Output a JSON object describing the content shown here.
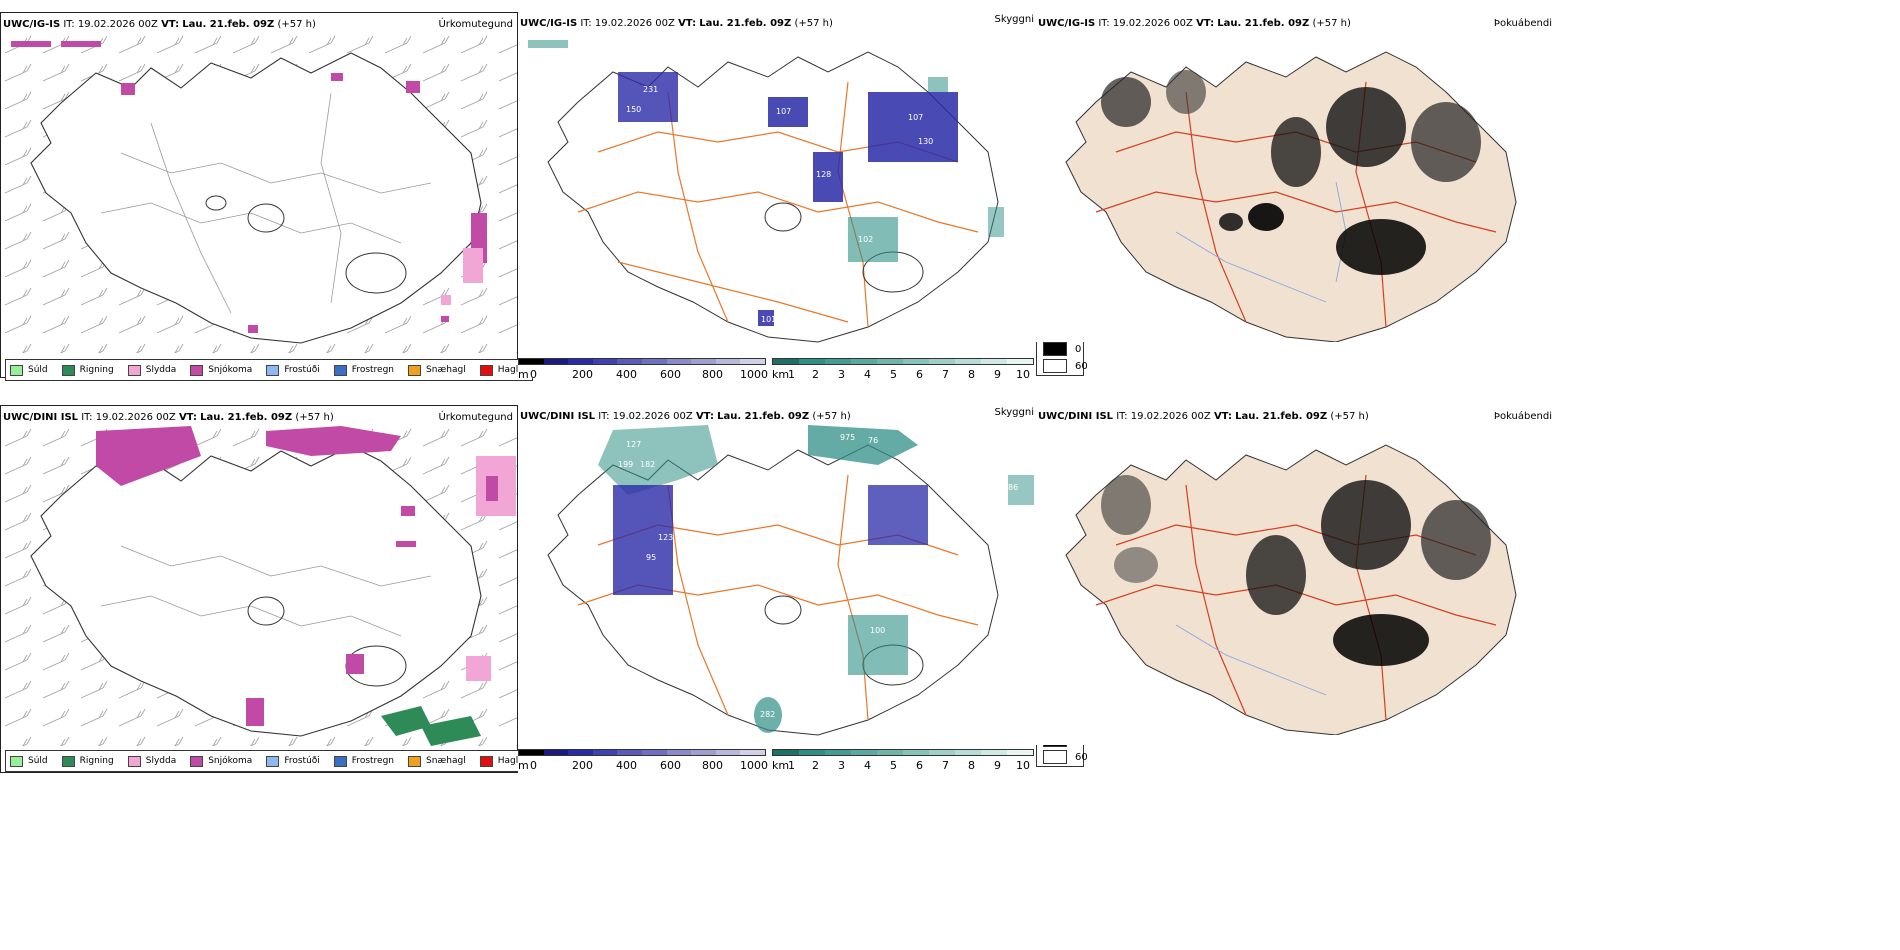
{
  "colors": {
    "precip_suld": "#99ee99",
    "precip_rigning": "#2e8b57",
    "precip_slydda": "#f2a6d6",
    "precip_snjokoma": "#c04aa6",
    "precip_frostudi": "#8fb8f0",
    "precip_frostregn": "#3a6fc4",
    "precip_snaehagl": "#f0a020",
    "precip_haglel": "#e01010",
    "cloud_blue": "#2a2aa8",
    "visibility_teal": "#2f8f86",
    "land_beige": "#f0e1d0",
    "road_orange": "#e8782a",
    "road_red": "#d64020",
    "river_blue": "#8aa6e6"
  },
  "rows": [
    {
      "header": {
        "model": "UWC/IG-IS",
        "it_label": "IT:",
        "it_value": "19.02.2026 00Z",
        "vt_label": "VT:",
        "vt_value": "Lau. 21.feb. 09Z",
        "offset": "(+57 h)"
      },
      "precip_title": "Úrkomutegund",
      "cloud_title": "Skyggni",
      "fog_title": "Þokuábendi",
      "cloud_labels": [
        "231",
        "150",
        "107",
        "128",
        "107",
        "130",
        "102",
        "101"
      ]
    },
    {
      "header": {
        "model": "UWC/DINI ISL",
        "it_label": "IT:",
        "it_value": "19.02.2026 00Z",
        "vt_label": "VT:",
        "vt_value": "Lau. 21.feb. 09Z",
        "offset": "(+57 h)"
      },
      "precip_title": "Úrkomutegund",
      "cloud_title": "Skyggni",
      "fog_title": "Þokuábendi",
      "cloud_labels": [
        "127",
        "199",
        "182",
        "975",
        "76",
        "86",
        "95",
        "123",
        "100",
        "282"
      ]
    }
  ],
  "precip_legend": [
    {
      "label": "Súld",
      "color": "#99ee99"
    },
    {
      "label": "Rigning",
      "color": "#2e8b57"
    },
    {
      "label": "Slydda",
      "color": "#f2a6d6"
    },
    {
      "label": "Snjókoma",
      "color": "#c04aa6"
    },
    {
      "label": "Frostúði",
      "color": "#8fb8f0"
    },
    {
      "label": "Frostregn",
      "color": "#3a6fc4"
    },
    {
      "label": "Snæhagl",
      "color": "#f0a020"
    },
    {
      "label": "Haglél",
      "color": "#e01010"
    }
  ],
  "cloud_scale": {
    "unit": "m",
    "ticks": [
      "0",
      "200",
      "400",
      "600",
      "800",
      "1000"
    ]
  },
  "vis_scale": {
    "unit": "km",
    "ticks": [
      "1",
      "2",
      "3",
      "4",
      "5",
      "6",
      "7",
      "8",
      "9",
      "10"
    ]
  },
  "fog_legend": {
    "high": "0",
    "low": "60"
  }
}
